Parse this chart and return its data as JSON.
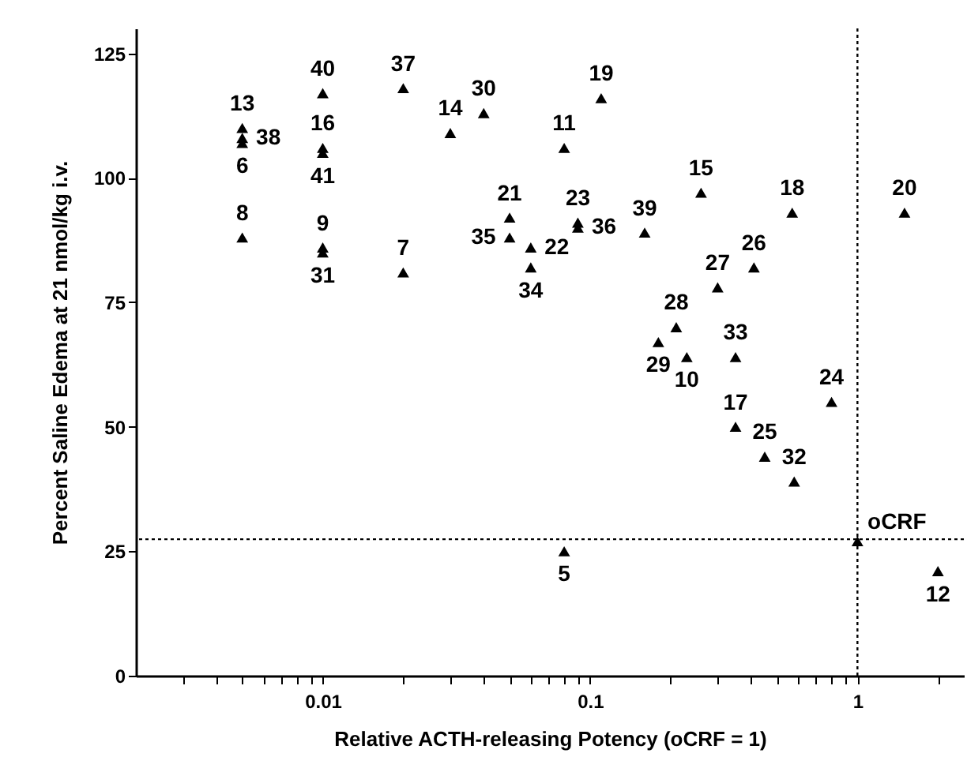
{
  "chart_data": {
    "type": "scatter",
    "xlabel": "Relative ACTH-releasing Potency (oCRF = 1)",
    "ylabel": "Percent Saline Edema at 21 nmol/kg i.v.",
    "log": "x",
    "xlim": [
      0.002,
      2.5
    ],
    "xticks": [
      {
        "value": 0.003,
        "label": null
      },
      {
        "value": 0.004,
        "label": null
      },
      {
        "value": 0.005,
        "label": null
      },
      {
        "value": 0.006,
        "label": null
      },
      {
        "value": 0.007,
        "label": null
      },
      {
        "value": 0.008,
        "label": null
      },
      {
        "value": 0.009,
        "label": null
      },
      0.01,
      {
        "value": 0.02,
        "label": null
      },
      {
        "value": 0.03,
        "label": null
      },
      {
        "value": 0.04,
        "label": null
      },
      {
        "value": 0.05,
        "label": null
      },
      {
        "value": 0.06,
        "label": null
      },
      {
        "value": 0.07,
        "label": null
      },
      {
        "value": 0.08,
        "label": null
      },
      {
        "value": 0.09,
        "label": null
      },
      0.1,
      {
        "value": 0.2,
        "label": null
      },
      {
        "value": 0.3,
        "label": null
      },
      {
        "value": 0.4,
        "label": null
      },
      {
        "value": 0.5,
        "label": null
      },
      {
        "value": 0.6,
        "label": null
      },
      {
        "value": 0.7,
        "label": null
      },
      {
        "value": 0.8,
        "label": null
      },
      {
        "value": 0.9,
        "label": null
      },
      1,
      {
        "value": 2,
        "label": null
      }
    ],
    "ylim": [
      0,
      130
    ],
    "yticks": [
      0,
      25,
      50,
      75,
      100,
      125
    ],
    "grid": false,
    "marker": "triangle",
    "series": [
      {
        "color": "#000000",
        "x": [
          0.005,
          0.005,
          0.005,
          0.005,
          0.01,
          0.01,
          0.01,
          0.01,
          0.01,
          0.02,
          0.02,
          0.03,
          0.04,
          0.05,
          0.05,
          0.06,
          0.06,
          0.08,
          0.11,
          0.09,
          0.09,
          0.16,
          0.26,
          0.57,
          1.5,
          0.41,
          0.3,
          0.21,
          0.18,
          0.23,
          0.35,
          0.8,
          0.35,
          0.45,
          0.58,
          0.08,
          1,
          2
        ],
        "values": [
          110,
          108,
          107,
          88,
          117,
          106,
          105,
          86,
          85,
          118,
          81,
          109,
          113,
          92,
          88,
          86,
          82,
          106,
          116,
          91,
          90,
          89,
          97,
          93,
          93,
          82,
          78,
          70,
          67,
          64,
          64,
          55,
          50,
          44,
          39,
          25,
          27,
          21
        ]
      }
    ],
    "ref_lines": [
      {
        "axis": "y",
        "value": 27.4,
        "color": "#000000",
        "line_style": "dotted"
      },
      {
        "axis": "x",
        "value": 1,
        "color": "#000000",
        "line_style": "dotted"
      }
    ],
    "annotations": [
      {
        "text": "13",
        "x": 0.005,
        "y": 110
      },
      {
        "text": "38",
        "x": 0.005,
        "y": 108
      },
      {
        "text": "6",
        "x": 0.005,
        "y": 107
      },
      {
        "text": "8",
        "x": 0.005,
        "y": 88
      },
      {
        "text": "40",
        "x": 0.01,
        "y": 117
      },
      {
        "text": "16",
        "x": 0.01,
        "y": 106
      },
      {
        "text": "41",
        "x": 0.01,
        "y": 105
      },
      {
        "text": "9",
        "x": 0.01,
        "y": 86
      },
      {
        "text": "31",
        "x": 0.01,
        "y": 85
      },
      {
        "text": "37",
        "x": 0.02,
        "y": 118
      },
      {
        "text": "7",
        "x": 0.02,
        "y": 81
      },
      {
        "text": "14",
        "x": 0.03,
        "y": 109
      },
      {
        "text": "30",
        "x": 0.04,
        "y": 113
      },
      {
        "text": "21",
        "x": 0.05,
        "y": 92
      },
      {
        "text": "35",
        "x": 0.05,
        "y": 88
      },
      {
        "text": "22",
        "x": 0.06,
        "y": 86
      },
      {
        "text": "34",
        "x": 0.06,
        "y": 82
      },
      {
        "text": "11",
        "x": 0.08,
        "y": 106
      },
      {
        "text": "19",
        "x": 0.11,
        "y": 116
      },
      {
        "text": "23",
        "x": 0.09,
        "y": 91
      },
      {
        "text": "36",
        "x": 0.09,
        "y": 90
      },
      {
        "text": "39",
        "x": 0.16,
        "y": 89
      },
      {
        "text": "15",
        "x": 0.26,
        "y": 97
      },
      {
        "text": "18",
        "x": 0.57,
        "y": 93
      },
      {
        "text": "20",
        "x": 1.5,
        "y": 93
      },
      {
        "text": "26",
        "x": 0.41,
        "y": 82
      },
      {
        "text": "27",
        "x": 0.3,
        "y": 78
      },
      {
        "text": "28",
        "x": 0.21,
        "y": 70
      },
      {
        "text": "29",
        "x": 0.18,
        "y": 67
      },
      {
        "text": "10",
        "x": 0.23,
        "y": 64
      },
      {
        "text": "33",
        "x": 0.35,
        "y": 64
      },
      {
        "text": "17",
        "x": 0.35,
        "y": 50
      },
      {
        "text": "24",
        "x": 0.8,
        "y": 55
      },
      {
        "text": "25",
        "x": 0.45,
        "y": 44
      },
      {
        "text": "32",
        "x": 0.58,
        "y": 39
      },
      {
        "text": "5",
        "x": 0.08,
        "y": 25
      },
      {
        "text": "12",
        "x": 2,
        "y": 21
      },
      {
        "text": "oCRF",
        "x": 1,
        "y": 27
      }
    ]
  }
}
